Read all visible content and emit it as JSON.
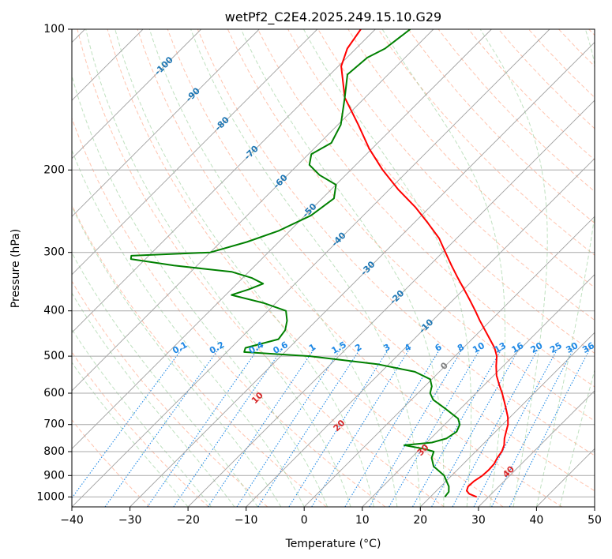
{
  "chart_data": {
    "type": "line",
    "title": "wetPf2_C2E4.2025.249.15.10.G29",
    "xlabel": "Temperature (°C)",
    "ylabel": "Pressure (hPa)",
    "xlim": [
      -40,
      50
    ],
    "ylim": [
      1050,
      100
    ],
    "y_scale": "log",
    "skew_degrees": 45,
    "x_ticks": [
      -40,
      -30,
      -20,
      -10,
      0,
      10,
      20,
      30,
      40,
      50
    ],
    "y_ticks": [
      100,
      200,
      300,
      400,
      500,
      600,
      700,
      800,
      900,
      1000
    ],
    "grid": true,
    "colors": {
      "temperature": "#ff0000",
      "dewpoint": "#008000",
      "isotherm": "#a0a0a0",
      "dry_adiabat": "#ff9c7a",
      "moist_adiabat": "#8cc98c",
      "mixing_ratio": "#1e88e5",
      "isotherm_labels": "#1f77b4",
      "theta_labels": "#d62728",
      "zero_label": "#808080"
    },
    "series": [
      {
        "key": "temperature",
        "p": [
          1000,
          985,
          970,
          950,
          925,
          900,
          875,
          850,
          825,
          800,
          775,
          750,
          725,
          700,
          675,
          650,
          625,
          600,
          575,
          550,
          525,
          500,
          480,
          460,
          440,
          420,
          400,
          380,
          360,
          340,
          320,
          300,
          280,
          260,
          240,
          220,
          200,
          180,
          160,
          140,
          120,
          110,
          100
        ],
        "t": [
          28.0,
          26.2,
          25.2,
          24.7,
          24.8,
          25.3,
          25.4,
          25.3,
          24.8,
          24.5,
          23.8,
          22.7,
          21.8,
          20.9,
          19.6,
          18.0,
          16.3,
          14.5,
          12.5,
          10.5,
          8.8,
          7.2,
          5.4,
          3.1,
          0.7,
          -1.8,
          -4.3,
          -7.0,
          -9.9,
          -13.0,
          -16.2,
          -19.5,
          -23.0,
          -27.5,
          -32.5,
          -38.5,
          -44.5,
          -50.5,
          -56.5,
          -63.5,
          -69.5,
          -71.5,
          -72.5
        ]
      },
      {
        "key": "dewpoint",
        "p": [
          1000,
          975,
          950,
          900,
          860,
          825,
          800,
          790,
          775,
          765,
          750,
          725,
          700,
          680,
          650,
          620,
          600,
          580,
          560,
          540,
          520,
          500,
          490,
          480,
          460,
          440,
          420,
          400,
          385,
          370,
          360,
          350,
          340,
          330,
          320,
          310,
          305,
          300,
          285,
          270,
          250,
          230,
          215,
          205,
          195,
          185,
          175,
          160,
          140,
          125,
          115,
          110,
          100
        ],
        "t": [
          22.5,
          22.3,
          21.4,
          18.7,
          15.3,
          13.5,
          12.8,
          10.9,
          6.6,
          10.9,
          12.7,
          13.3,
          12.6,
          11.3,
          7.7,
          3.8,
          2.1,
          1.2,
          -0.3,
          -4.2,
          -12.0,
          -25.0,
          -37.0,
          -37.5,
          -33.3,
          -33.7,
          -35.0,
          -36.9,
          -42.0,
          -49.0,
          -47.0,
          -45.5,
          -48.5,
          -53.0,
          -64.0,
          -72.5,
          -73.0,
          -60.0,
          -55.5,
          -52.0,
          -49.0,
          -48.0,
          -50.0,
          -54.5,
          -58.0,
          -59.5,
          -58.0,
          -59.5,
          -63.5,
          -67.0,
          -66.5,
          -65.0,
          -64.0
        ]
      }
    ],
    "isotherm_labels": [
      "-100",
      "-90",
      "-80",
      "-70",
      "-60",
      "-50",
      "-40",
      "-30",
      "-20",
      "-10",
      "0"
    ],
    "isotherm_label_values": [
      -100,
      -90,
      -80,
      -70,
      -60,
      -50,
      -40,
      -30,
      -20,
      -10,
      0
    ],
    "theta_labels": [
      "10",
      "20",
      "30",
      "40"
    ],
    "theta_label_values": [
      10,
      20,
      30,
      40
    ],
    "mixing_ratio_labels": [
      "0.1",
      "0.2",
      "0.4",
      "0.6",
      "1",
      "1.5",
      "2",
      "3",
      "4",
      "6",
      "8",
      "10",
      "13",
      "16",
      "20",
      "25",
      "30",
      "36"
    ],
    "mixing_ratio_values": [
      0.1,
      0.2,
      0.4,
      0.6,
      1,
      1.5,
      2,
      3,
      4,
      6,
      8,
      10,
      13,
      16,
      20,
      25,
      30,
      36
    ]
  }
}
